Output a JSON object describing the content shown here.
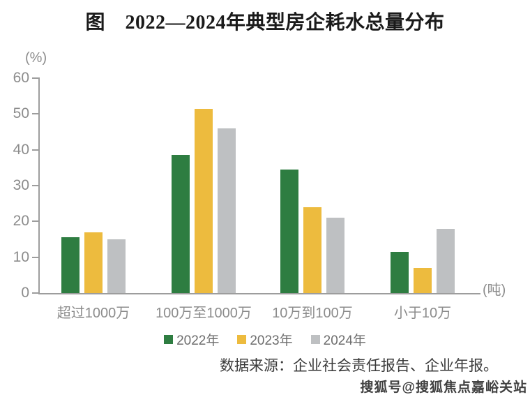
{
  "title": "图　2022—2024年典型房企耗水总量分布",
  "source": "数据来源：企业社会责任报告、企业年报。",
  "watermark": "搜狐号@搜狐焦点嘉峪关站",
  "colors": {
    "series_2022": "#2e7d41",
    "series_2023": "#edbb3e",
    "series_2024": "#bec0c2",
    "axis": "#9d9d9d",
    "tick_label": "#8c8c8c"
  },
  "chart_data": {
    "type": "bar",
    "title": "图　2022—2024年典型房企耗水总量分布",
    "categories": [
      "超过1000万",
      "100万至1000万",
      "10万到100万",
      "小于10万"
    ],
    "series": [
      {
        "name": "2022年",
        "color": "#2e7d41",
        "values": [
          15.5,
          38.5,
          34.5,
          11.5
        ]
      },
      {
        "name": "2023年",
        "color": "#edbb3e",
        "values": [
          17,
          51.5,
          24,
          7
        ]
      },
      {
        "name": "2024年",
        "color": "#bec0c2",
        "values": [
          15,
          46,
          21,
          18
        ]
      }
    ],
    "ylabel": "(%)",
    "xlabel_unit": "(吨)",
    "ylim": [
      0,
      60
    ],
    "yticks": [
      0,
      10,
      20,
      30,
      40,
      50,
      60
    ],
    "grid": false,
    "legend_position": "bottom"
  }
}
